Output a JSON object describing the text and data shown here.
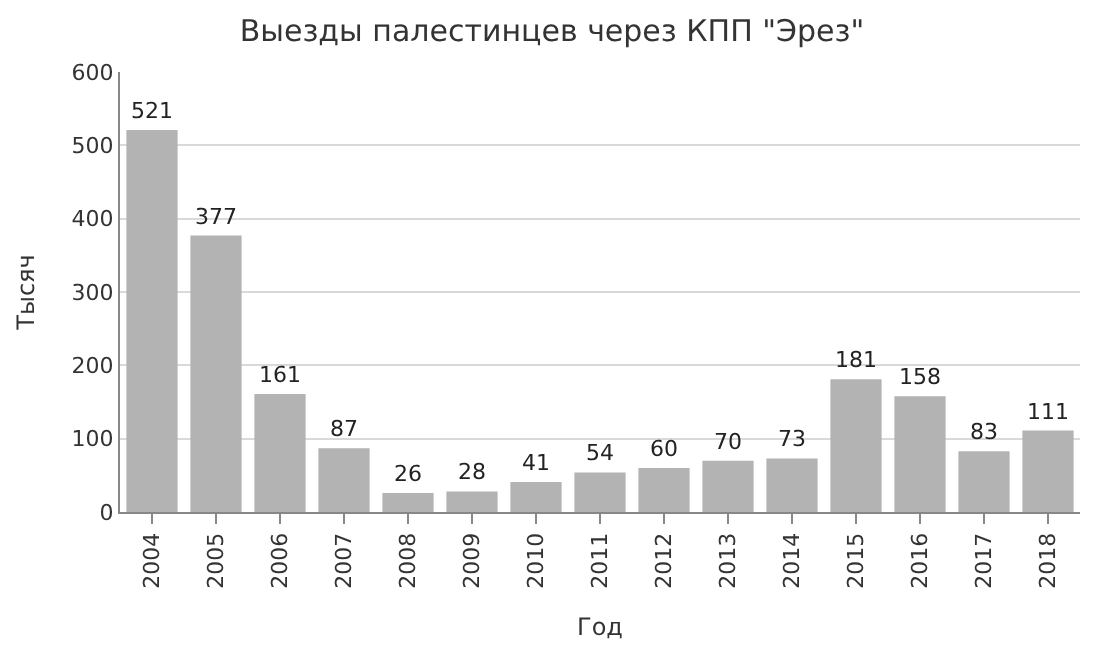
{
  "chart_data": {
    "type": "bar",
    "title": "Выезды палестинцев через КПП \"Эрез\"",
    "xlabel": "Год",
    "ylabel": "Тысяч",
    "categories": [
      "2004",
      "2005",
      "2006",
      "2007",
      "2008",
      "2009",
      "2010",
      "2011",
      "2012",
      "2013",
      "2014",
      "2015",
      "2016",
      "2017",
      "2018"
    ],
    "values": [
      521,
      377,
      161,
      87,
      26,
      28,
      41,
      54,
      60,
      70,
      73,
      181,
      158,
      83,
      111
    ],
    "color": "#b3b3b3",
    "ylim": [
      0,
      600
    ],
    "yticks": [
      0,
      100,
      200,
      300,
      400,
      500,
      600
    ],
    "grid": "y",
    "data_labels": true,
    "legend": false
  }
}
